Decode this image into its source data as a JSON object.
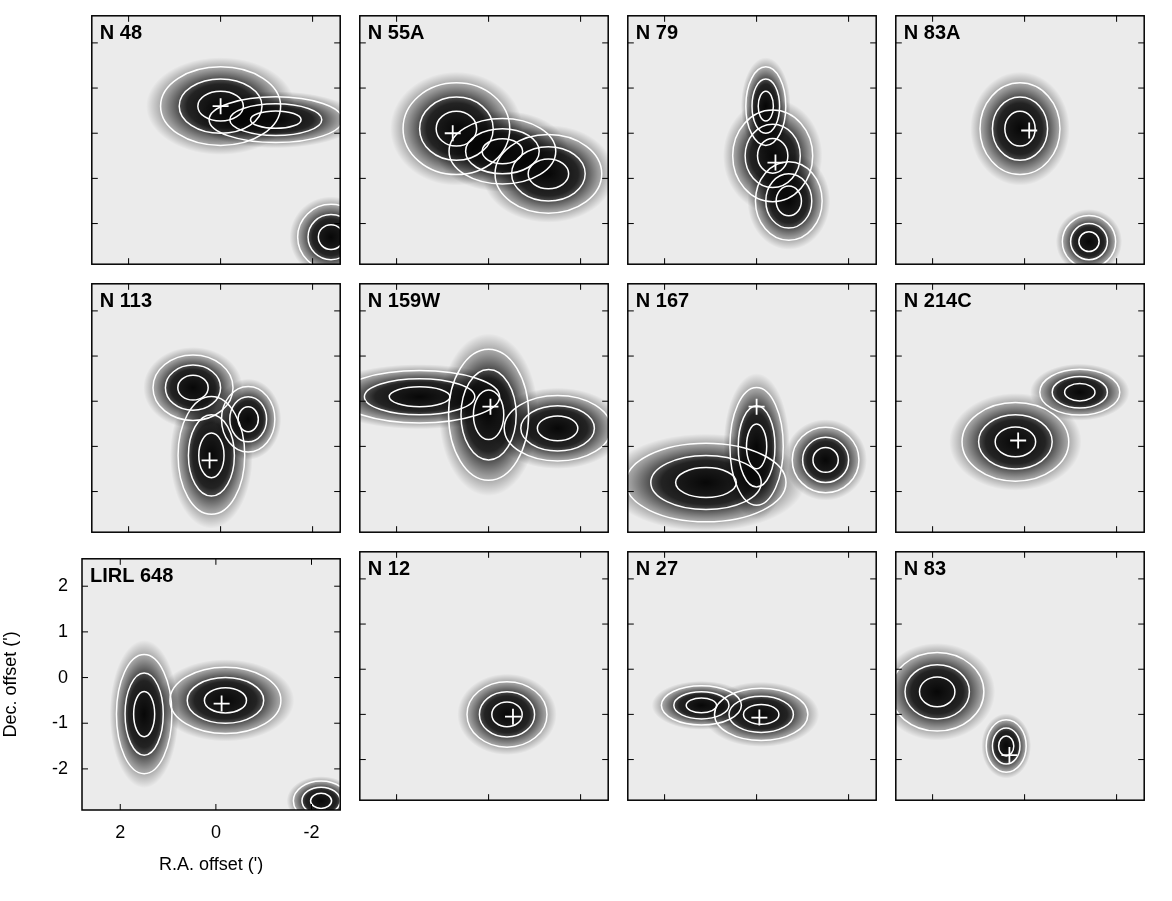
{
  "chart_data": [
    {
      "type": "scatter",
      "title": "N 48",
      "x": [
        0
      ],
      "y": [
        0.6
      ],
      "marker": "cross",
      "xlim": [
        2.8,
        -2.6
      ],
      "ylim": [
        -2.9,
        2.6
      ],
      "xticks": [
        2,
        0,
        -2
      ],
      "yticks": [
        -2,
        -1,
        0,
        1,
        2
      ],
      "tick_labels": false,
      "emission": [
        {
          "x": 0,
          "y": 0.6,
          "sx": 0.9,
          "sy": 0.6
        },
        {
          "x": -1.2,
          "y": 0.3,
          "sx": 1.0,
          "sy": 0.35
        },
        {
          "x": -2.4,
          "y": -2.3,
          "sx": 0.5,
          "sy": 0.5
        }
      ]
    },
    {
      "type": "scatter",
      "title": "N 55A",
      "x": [
        0.78
      ],
      "y": [
        0
      ],
      "marker": "cross",
      "xlim": [
        2.8,
        -2.6
      ],
      "ylim": [
        -2.9,
        2.6
      ],
      "xticks": [
        2,
        0,
        -2
      ],
      "yticks": [
        -2,
        -1,
        0,
        1,
        2
      ],
      "tick_labels": false,
      "emission": [
        {
          "x": 0.7,
          "y": 0.1,
          "sx": 0.8,
          "sy": 0.7
        },
        {
          "x": -1.3,
          "y": -0.9,
          "sx": 0.8,
          "sy": 0.6
        },
        {
          "x": -0.3,
          "y": -0.4,
          "sx": 0.8,
          "sy": 0.5
        }
      ]
    },
    {
      "type": "scatter",
      "title": "N 79",
      "x": [
        -0.41
      ],
      "y": [
        -0.65
      ],
      "marker": "cross",
      "xlim": [
        2.8,
        -2.6
      ],
      "ylim": [
        -2.9,
        2.6
      ],
      "xticks": [
        2,
        0,
        -2
      ],
      "yticks": [
        -2,
        -1,
        0,
        1,
        2
      ],
      "tick_labels": false,
      "emission": [
        {
          "x": -0.35,
          "y": -0.5,
          "sx": 0.6,
          "sy": 0.7
        },
        {
          "x": -0.7,
          "y": -1.5,
          "sx": 0.5,
          "sy": 0.6
        },
        {
          "x": -0.2,
          "y": 0.6,
          "sx": 0.3,
          "sy": 0.6
        }
      ]
    },
    {
      "type": "scatter",
      "title": "N 83A",
      "x": [
        -0.1
      ],
      "y": [
        0.06
      ],
      "marker": "cross",
      "xlim": [
        2.8,
        -2.6
      ],
      "ylim": [
        -2.9,
        2.6
      ],
      "xticks": [
        2,
        0,
        -2
      ],
      "yticks": [
        -2,
        -1,
        0,
        1,
        2
      ],
      "tick_labels": false,
      "emission": [
        {
          "x": 0.1,
          "y": 0.1,
          "sx": 0.6,
          "sy": 0.7
        },
        {
          "x": -1.4,
          "y": -2.4,
          "sx": 0.4,
          "sy": 0.4
        }
      ]
    },
    {
      "type": "scatter",
      "title": "N 113",
      "x": [
        0.24
      ],
      "y": [
        -1.31
      ],
      "marker": "cross",
      "xlim": [
        2.8,
        -2.6
      ],
      "ylim": [
        -2.9,
        2.6
      ],
      "xticks": [
        2,
        0,
        -2
      ],
      "yticks": [
        -2,
        -1,
        0,
        1,
        2
      ],
      "tick_labels": false,
      "emission": [
        {
          "x": 0.2,
          "y": -1.2,
          "sx": 0.5,
          "sy": 0.9
        },
        {
          "x": 0.6,
          "y": 0.3,
          "sx": 0.6,
          "sy": 0.5
        },
        {
          "x": -0.6,
          "y": -0.4,
          "sx": 0.4,
          "sy": 0.5
        }
      ]
    },
    {
      "type": "scatter",
      "title": "N 159W",
      "x": [
        -0.04
      ],
      "y": [
        -0.12
      ],
      "marker": "cross",
      "xlim": [
        2.8,
        -2.6
      ],
      "ylim": [
        -2.9,
        2.6
      ],
      "xticks": [
        2,
        0,
        -2
      ],
      "yticks": [
        -2,
        -1,
        0,
        1,
        2
      ],
      "tick_labels": false,
      "emission": [
        {
          "x": 0,
          "y": -0.3,
          "sx": 0.6,
          "sy": 1.0
        },
        {
          "x": 1.5,
          "y": 0.1,
          "sx": 1.2,
          "sy": 0.4
        },
        {
          "x": -1.5,
          "y": -0.6,
          "sx": 0.8,
          "sy": 0.5
        }
      ]
    },
    {
      "type": "scatter",
      "title": "N 167",
      "x": [
        0
      ],
      "y": [
        -0.12
      ],
      "marker": "cross",
      "xlim": [
        2.8,
        -2.6
      ],
      "ylim": [
        -2.9,
        2.6
      ],
      "xticks": [
        2,
        0,
        -2
      ],
      "yticks": [
        -2,
        -1,
        0,
        1,
        2
      ],
      "tick_labels": false,
      "emission": [
        {
          "x": 1.1,
          "y": -1.8,
          "sx": 1.2,
          "sy": 0.6
        },
        {
          "x": 0,
          "y": -1.0,
          "sx": 0.4,
          "sy": 0.9
        },
        {
          "x": -1.5,
          "y": -1.3,
          "sx": 0.5,
          "sy": 0.5
        }
      ]
    },
    {
      "type": "scatter",
      "title": "N 214C",
      "x": [
        0.14
      ],
      "y": [
        -0.87
      ],
      "marker": "cross",
      "xlim": [
        2.8,
        -2.6
      ],
      "ylim": [
        -2.9,
        2.6
      ],
      "xticks": [
        2,
        0,
        -2
      ],
      "yticks": [
        -2,
        -1,
        0,
        1,
        2
      ],
      "tick_labels": false,
      "emission": [
        {
          "x": 0.2,
          "y": -0.9,
          "sx": 0.8,
          "sy": 0.6
        },
        {
          "x": -1.2,
          "y": 0.2,
          "sx": 0.6,
          "sy": 0.35
        }
      ]
    },
    {
      "type": "scatter",
      "title": "LIRL 648",
      "x": [
        -0.12
      ],
      "y": [
        -0.57
      ],
      "marker": "cross",
      "xlim": [
        2.8,
        -2.6
      ],
      "ylim": [
        -2.9,
        2.6
      ],
      "xticks": [
        2,
        0,
        -2
      ],
      "yticks": [
        -2,
        -1,
        0,
        1,
        2
      ],
      "xlabel": "R.A. offset (')",
      "ylabel": "Dec. offset (')",
      "emission": [
        {
          "x": -0.2,
          "y": -0.5,
          "sx": 0.8,
          "sy": 0.5
        },
        {
          "x": 1.5,
          "y": -0.8,
          "sx": 0.4,
          "sy": 0.9
        },
        {
          "x": -2.2,
          "y": -2.7,
          "sx": 0.4,
          "sy": 0.3
        }
      ]
    },
    {
      "type": "scatter",
      "title": "N 12",
      "x": [
        -0.53
      ],
      "y": [
        -1.05
      ],
      "marker": "cross",
      "xlim": [
        2.8,
        -2.6
      ],
      "ylim": [
        -2.9,
        2.6
      ],
      "xticks": [
        2,
        0,
        -2
      ],
      "yticks": [
        -2,
        -1,
        0,
        1,
        2
      ],
      "tick_labels": false,
      "emission": [
        {
          "x": -0.4,
          "y": -1.0,
          "sx": 0.6,
          "sy": 0.5
        }
      ]
    },
    {
      "type": "scatter",
      "title": "N 27",
      "x": [
        -0.06
      ],
      "y": [
        -1.07
      ],
      "marker": "cross",
      "xlim": [
        2.8,
        -2.6
      ],
      "ylim": [
        -2.9,
        2.6
      ],
      "xticks": [
        2,
        0,
        -2
      ],
      "yticks": [
        -2,
        -1,
        0,
        1,
        2
      ],
      "tick_labels": false,
      "emission": [
        {
          "x": -0.1,
          "y": -1.0,
          "sx": 0.7,
          "sy": 0.4
        },
        {
          "x": 1.2,
          "y": -0.8,
          "sx": 0.6,
          "sy": 0.3
        }
      ]
    },
    {
      "type": "scatter",
      "title": "N 83",
      "x": [
        0.33
      ],
      "y": [
        -1.9
      ],
      "marker": "cross",
      "xlim": [
        2.8,
        -2.6
      ],
      "ylim": [
        -2.9,
        2.6
      ],
      "xticks": [
        2,
        0,
        -2
      ],
      "yticks": [
        -2,
        -1,
        0,
        1,
        2
      ],
      "tick_labels": false,
      "emission": [
        {
          "x": 1.9,
          "y": -0.5,
          "sx": 0.7,
          "sy": 0.6
        },
        {
          "x": 0.4,
          "y": -1.7,
          "sx": 0.3,
          "sy": 0.4
        }
      ]
    }
  ]
}
